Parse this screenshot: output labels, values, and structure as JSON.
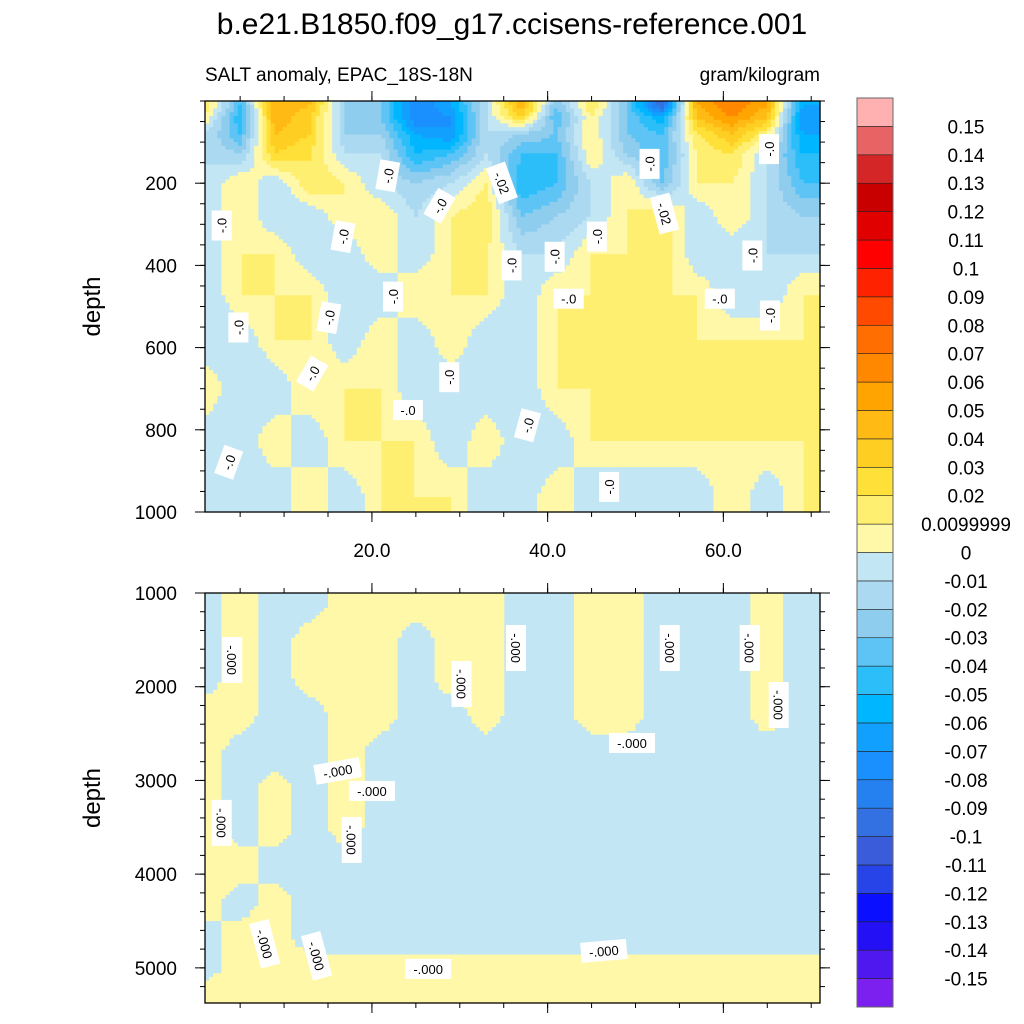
{
  "chart_data": {
    "type": "heatmap",
    "title": "b.e21.B1850.f09_g17.ccisens-reference.001",
    "left_subtitle": "SALT anomaly, EPAC_18S-18N",
    "right_subtitle": "gram/kilogram",
    "colorbar": {
      "position": "right",
      "boundaries": [
        -0.15,
        -0.14,
        -0.13,
        -0.12,
        -0.11,
        -0.1,
        -0.09,
        -0.08,
        -0.07,
        -0.06,
        -0.05,
        -0.04,
        -0.03,
        -0.02,
        -0.01,
        0,
        0.01,
        0.02,
        0.03,
        0.04,
        0.05,
        0.06,
        0.07,
        0.08,
        0.09,
        0.1,
        0.11,
        0.12,
        0.13,
        0.14,
        0.15
      ],
      "labels": [
        "-0.15",
        "-0.14",
        "-0.13",
        "-0.12",
        "-0.11",
        "-0.1",
        "-0.09",
        "-0.08",
        "-0.07",
        "-0.06",
        "-0.05",
        "-0.04",
        "-0.03",
        "-0.02",
        "-0.01",
        "0",
        "0.0099999",
        "0.02",
        "0.03",
        "0.04",
        "0.05",
        "0.06",
        "0.07",
        "0.08",
        "0.09",
        "0.1",
        "0.11",
        "0.12",
        "0.13",
        "0.14",
        "0.15"
      ],
      "colors": [
        "#7B20EE",
        "#4E18EE",
        "#2410F5",
        "#0A10FF",
        "#2644E8",
        "#3A5CDA",
        "#3370E2",
        "#2580F0",
        "#1A90FF",
        "#12A0FF",
        "#00B7FF",
        "#2CBEF8",
        "#5EC4F5",
        "#8ECDEE",
        "#AAD9F1",
        "#C2E6F4",
        "#FFF8A8",
        "#FFEF70",
        "#FFE038",
        "#FFCE22",
        "#FFBA14",
        "#FFA400",
        "#FF8800",
        "#FF6E00",
        "#FF4A00",
        "#FF2200",
        "#FF0000",
        "#E00000",
        "#C80000",
        "#D42626",
        "#E86464",
        "#FFB0B0"
      ]
    },
    "panels": [
      {
        "ylabel": "depth",
        "xlim": [
          1,
          71
        ],
        "ylim": [
          0,
          1000
        ],
        "y_reversed": true,
        "yticks": [
          {
            "value": 200,
            "label": "200"
          },
          {
            "value": 400,
            "label": "400"
          },
          {
            "value": 600,
            "label": "600"
          },
          {
            "value": 800,
            "label": "800"
          },
          {
            "value": 1000,
            "label": "1000"
          }
        ],
        "xticks": [
          {
            "value": 20,
            "label": "20.0"
          },
          {
            "value": 40,
            "label": "40.0"
          },
          {
            "value": 60,
            "label": "60.0"
          }
        ],
        "x": [
          1,
          5,
          9,
          13,
          17,
          21,
          25,
          29,
          33,
          37,
          41,
          45,
          49,
          53,
          57,
          61,
          65,
          69
        ],
        "depth": [
          10,
          40,
          80,
          130,
          200,
          280,
          370,
          470,
          580,
          700,
          830,
          960
        ],
        "values": [
          [
            0.02,
            -0.04,
            0.05,
            0.04,
            -0.02,
            -0.03,
            -0.08,
            -0.06,
            -0.01,
            0.05,
            -0.03,
            0.02,
            -0.03,
            -0.1,
            0.05,
            0.07,
            0.05,
            -0.06
          ],
          [
            0.01,
            -0.05,
            0.05,
            0.03,
            -0.02,
            -0.03,
            -0.08,
            -0.07,
            -0.01,
            0.03,
            -0.04,
            0.01,
            -0.03,
            -0.06,
            0.04,
            0.06,
            0.04,
            -0.07
          ],
          [
            -0.01,
            -0.04,
            0.04,
            0.03,
            -0.02,
            -0.02,
            -0.06,
            -0.07,
            -0.01,
            -0.02,
            -0.03,
            0.01,
            -0.03,
            -0.04,
            0.02,
            0.04,
            0.01,
            -0.06
          ],
          [
            -0.01,
            -0.02,
            0.03,
            0.02,
            -0.01,
            -0.01,
            -0.05,
            -0.04,
            -0.01,
            -0.04,
            -0.04,
            0.01,
            -0.02,
            -0.04,
            0.01,
            0.02,
            -0.01,
            -0.05
          ],
          [
            -0.01,
            0.01,
            -0.01,
            0.02,
            0.01,
            -0.01,
            -0.02,
            -0.01,
            0.01,
            -0.05,
            -0.04,
            -0.01,
            0.01,
            -0.03,
            0.01,
            0.01,
            -0.01,
            -0.04
          ],
          [
            -0.01,
            0.01,
            -0.01,
            -0.01,
            0.01,
            0.01,
            -0.01,
            0.01,
            0.02,
            -0.03,
            -0.02,
            -0.01,
            0.01,
            0.02,
            -0.01,
            0.01,
            -0.01,
            -0.02
          ],
          [
            -0.01,
            0.01,
            0.01,
            -0.01,
            -0.01,
            0.01,
            -0.01,
            0.01,
            0.01,
            -0.01,
            -0.01,
            0.01,
            0.01,
            0.02,
            -0.01,
            -0.01,
            -0.01,
            -0.01
          ],
          [
            -0.01,
            0.01,
            0.01,
            0.01,
            -0.01,
            -0.01,
            0.01,
            0.01,
            0.01,
            -0.01,
            0.01,
            0.01,
            0.01,
            0.01,
            0.01,
            -0.01,
            -0.01,
            0.01
          ],
          [
            -0.01,
            -0.01,
            0.01,
            0.01,
            -0.01,
            0.01,
            -0.01,
            0.01,
            -0.01,
            -0.01,
            0.01,
            0.01,
            0.01,
            0.01,
            0.01,
            0.01,
            0.01,
            0.01
          ],
          [
            0.01,
            -0.01,
            -0.01,
            0.01,
            0.01,
            0.01,
            -0.01,
            -0.01,
            -0.01,
            -0.01,
            0.01,
            0.01,
            0.01,
            0.01,
            0.01,
            0.01,
            0.01,
            0.01
          ],
          [
            -0.01,
            -0.01,
            0.01,
            -0.01,
            0.01,
            0.01,
            0.01,
            -0.01,
            0.01,
            -0.01,
            -0.01,
            0.01,
            0.01,
            0.01,
            0.01,
            0.01,
            0.01,
            0.01
          ],
          [
            -0.01,
            -0.01,
            -0.01,
            0.01,
            -0.01,
            0.01,
            0.01,
            0.01,
            -0.01,
            -0.01,
            0.01,
            -0.01,
            -0.01,
            -0.01,
            -0.01,
            0.01,
            -0.01,
            0.01
          ]
        ],
        "contour_labels": [
          {
            "text": "-.0",
            "x": 2.9,
            "depth": 303
          },
          {
            "text": "-.0",
            "x": 4.8,
            "depth": 551
          },
          {
            "text": "-.0",
            "x": 3.7,
            "depth": 879
          },
          {
            "text": "-.0",
            "x": 13.2,
            "depth": 663
          },
          {
            "text": "-.0",
            "x": 15.1,
            "depth": 527
          },
          {
            "text": "-.0",
            "x": 16.7,
            "depth": 330
          },
          {
            "text": "-.0",
            "x": 22.4,
            "depth": 476
          },
          {
            "text": "-.0",
            "x": 24.1,
            "depth": 752
          },
          {
            "text": "-.0",
            "x": 21.8,
            "depth": 182
          },
          {
            "text": "-.0",
            "x": 27.7,
            "depth": 255
          },
          {
            "text": "-.0",
            "x": 28.8,
            "depth": 672
          },
          {
            "text": "-.02",
            "x": 34.8,
            "depth": 199
          },
          {
            "text": "-.0",
            "x": 35.9,
            "depth": 400
          },
          {
            "text": "-.0",
            "x": 37.7,
            "depth": 789
          },
          {
            "text": "-.0",
            "x": 40.8,
            "depth": 379
          },
          {
            "text": "-.0",
            "x": 42.4,
            "depth": 481
          },
          {
            "text": "-.0",
            "x": 45.6,
            "depth": 330
          },
          {
            "text": "-.0",
            "x": 47.0,
            "depth": 939
          },
          {
            "text": "-.0",
            "x": 51.6,
            "depth": 153
          },
          {
            "text": "-.02",
            "x": 53.3,
            "depth": 274
          },
          {
            "text": "-.0",
            "x": 63.3,
            "depth": 376
          },
          {
            "text": "-.0",
            "x": 59.6,
            "depth": 481
          },
          {
            "text": "-.0",
            "x": 65.3,
            "depth": 522
          },
          {
            "text": "-.0",
            "x": 65.2,
            "depth": 117
          }
        ]
      },
      {
        "ylabel": "depth",
        "xlim": [
          1,
          71
        ],
        "ylim": [
          1000,
          5375
        ],
        "y_reversed": true,
        "yticks": [
          {
            "value": 1000,
            "label": "1000"
          },
          {
            "value": 2000,
            "label": "2000"
          },
          {
            "value": 3000,
            "label": "3000"
          },
          {
            "value": 4000,
            "label": "4000"
          },
          {
            "value": 5000,
            "label": "5000"
          }
        ],
        "xticks": [
          {
            "value": 20,
            "label": ""
          },
          {
            "value": 40,
            "label": ""
          },
          {
            "value": 60,
            "label": ""
          }
        ],
        "x": [
          1,
          5,
          9,
          13,
          17,
          21,
          25,
          29,
          33,
          37,
          41,
          45,
          49,
          53,
          57,
          61,
          65,
          69
        ],
        "depth": [
          1100,
          1500,
          1900,
          2300,
          2700,
          3100,
          3500,
          3900,
          4300,
          4700,
          5000,
          5250
        ],
        "values": [
          [
            -0.001,
            0.001,
            -0.001,
            -0.001,
            0.001,
            0.001,
            0.001,
            0.001,
            0.001,
            -0.001,
            -0.001,
            0.001,
            0.001,
            -0.001,
            -0.001,
            -0.001,
            0.001,
            -0.001
          ],
          [
            -0.001,
            0.001,
            -0.001,
            0.001,
            0.001,
            0.001,
            -0.001,
            0.001,
            0.001,
            -0.001,
            -0.001,
            0.001,
            0.001,
            -0.001,
            -0.001,
            -0.001,
            0.001,
            -0.001
          ],
          [
            -0.001,
            0.001,
            -0.001,
            0.001,
            0.001,
            0.001,
            -0.001,
            0.001,
            0.001,
            -0.001,
            -0.001,
            0.001,
            0.001,
            -0.001,
            -0.001,
            -0.001,
            0.001,
            -0.001
          ],
          [
            0.001,
            0.001,
            -0.001,
            -0.001,
            0.001,
            0.001,
            -0.001,
            -0.001,
            0.001,
            -0.001,
            -0.001,
            0.001,
            0.001,
            -0.001,
            -0.001,
            -0.001,
            0.001,
            -0.001
          ],
          [
            0.001,
            -0.001,
            -0.001,
            -0.001,
            0.001,
            -0.001,
            -0.001,
            -0.001,
            -0.001,
            -0.001,
            -0.001,
            -0.001,
            -0.001,
            -0.001,
            -0.001,
            -0.001,
            -0.001,
            -0.001
          ],
          [
            0.001,
            -0.001,
            0.001,
            -0.001,
            0.001,
            -0.001,
            -0.001,
            -0.001,
            -0.001,
            -0.001,
            -0.001,
            -0.001,
            -0.001,
            -0.001,
            -0.001,
            -0.001,
            -0.001,
            -0.001
          ],
          [
            0.001,
            -0.001,
            0.001,
            -0.001,
            0.001,
            -0.001,
            -0.001,
            -0.001,
            -0.001,
            -0.001,
            -0.001,
            -0.001,
            -0.001,
            -0.001,
            -0.001,
            -0.001,
            -0.001,
            -0.001
          ],
          [
            0.001,
            0.001,
            -0.001,
            -0.001,
            -0.001,
            -0.001,
            -0.001,
            -0.001,
            -0.001,
            -0.001,
            -0.001,
            -0.001,
            -0.001,
            -0.001,
            -0.001,
            -0.001,
            -0.001,
            -0.001
          ],
          [
            0.001,
            -0.001,
            0.001,
            -0.001,
            -0.001,
            -0.001,
            -0.001,
            -0.001,
            -0.001,
            -0.001,
            -0.001,
            -0.001,
            -0.001,
            -0.001,
            -0.001,
            -0.001,
            -0.001,
            -0.001
          ],
          [
            -0.001,
            0.001,
            0.001,
            -0.001,
            -0.001,
            -0.001,
            -0.001,
            -0.001,
            -0.001,
            -0.001,
            -0.001,
            -0.001,
            -0.001,
            -0.001,
            -0.001,
            -0.001,
            -0.001,
            -0.001
          ],
          [
            -0.001,
            0.001,
            0.001,
            0.001,
            0.001,
            0.001,
            0.001,
            0.001,
            0.001,
            0.001,
            0.001,
            0.001,
            0.001,
            0.001,
            0.001,
            0.001,
            0.001,
            0.001
          ],
          [
            0.001,
            0.001,
            0.001,
            0.001,
            0.001,
            0.001,
            0.001,
            0.001,
            0.001,
            0.001,
            0.001,
            0.001,
            0.001,
            0.001,
            0.001,
            0.001,
            0.001,
            0.001
          ]
        ],
        "contour_labels": [
          {
            "text": "-.000",
            "x": 4.1,
            "depth": 1715
          },
          {
            "text": "-.000",
            "x": 30.2,
            "depth": 1971
          },
          {
            "text": "-.000",
            "x": 36.4,
            "depth": 1587
          },
          {
            "text": "-.000",
            "x": 53.9,
            "depth": 1587
          },
          {
            "text": "-.000",
            "x": 63.0,
            "depth": 1587
          },
          {
            "text": "-.000",
            "x": 66.3,
            "depth": 2195
          },
          {
            "text": "-.000",
            "x": 49.6,
            "depth": 2600
          },
          {
            "text": "-.000",
            "x": 16.1,
            "depth": 2899
          },
          {
            "text": "-.000",
            "x": 20.0,
            "depth": 3112
          },
          {
            "text": "-.000",
            "x": 2.9,
            "depth": 3453
          },
          {
            "text": "-.000",
            "x": 17.7,
            "depth": 3635
          },
          {
            "text": "-.000",
            "x": 7.8,
            "depth": 4744
          },
          {
            "text": "-.000",
            "x": 13.7,
            "depth": 4872
          },
          {
            "text": "-.000",
            "x": 26.4,
            "depth": 5011
          },
          {
            "text": "-.000",
            "x": 46.4,
            "depth": 4819
          }
        ]
      }
    ]
  }
}
